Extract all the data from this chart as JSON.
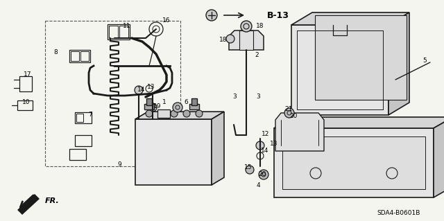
{
  "bg_color": "#f0f0f0",
  "line_color": "#1a1a1a",
  "text_color": "#000000",
  "diagram_code": "SDA4-B0601B",
  "figsize": [
    6.4,
    3.19
  ],
  "dpi": 100
}
